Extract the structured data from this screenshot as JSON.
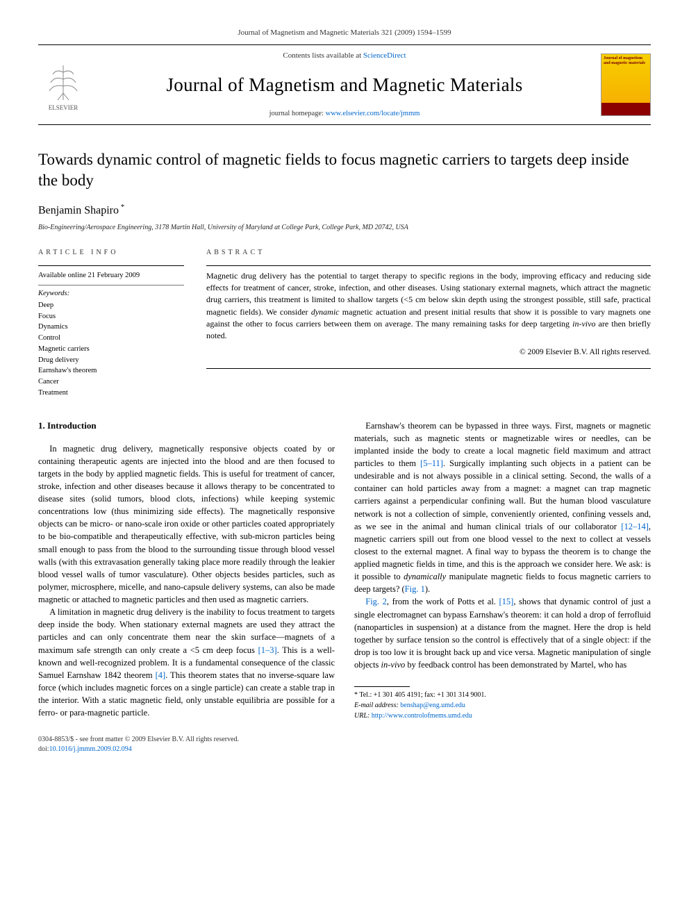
{
  "header_citation": "Journal of Magnetism and Magnetic Materials 321 (2009) 1594–1599",
  "masthead": {
    "publisher": "ELSEVIER",
    "contents_prefix": "Contents lists available at ",
    "contents_link": "ScienceDirect",
    "journal_name": "Journal of Magnetism and Magnetic Materials",
    "homepage_prefix": "journal homepage: ",
    "homepage_link": "www.elsevier.com/locate/jmmm",
    "cover_text": "Journal of magnetism and magnetic materials"
  },
  "title": "Towards dynamic control of magnetic fields to focus magnetic carriers to targets deep inside the body",
  "author": "Benjamin Shapiro",
  "author_marker": "*",
  "affiliation": "Bio-Engineering/Aerospace Engineering, 3178 Martin Hall, University of Maryland at College Park, College Park, MD 20742, USA",
  "info": {
    "heading": "article info",
    "available": "Available online 21 February 2009",
    "keywords_label": "Keywords:",
    "keywords": [
      "Deep",
      "Focus",
      "Dynamics",
      "Control",
      "Magnetic carriers",
      "Drug delivery",
      "Earnshaw's theorem",
      "Cancer",
      "Treatment"
    ]
  },
  "abstract": {
    "heading": "abstract",
    "text_parts": [
      "Magnetic drug delivery has the potential to target therapy to specific regions in the body, improving efficacy and reducing side effects for treatment of cancer, stroke, infection, and other diseases. Using stationary external magnets, which attract the magnetic drug carriers, this treatment is limited to shallow targets (<5 cm below skin depth using the strongest possible, still safe, practical magnetic fields). We consider ",
      "dynamic",
      " magnetic actuation and present initial results that show it is possible to vary magnets one against the other to focus carriers between them on average. The many remaining tasks for deep targeting ",
      "in-vivo",
      " are then briefly noted."
    ],
    "copyright": "© 2009 Elsevier B.V. All rights reserved."
  },
  "body": {
    "section_heading": "1. Introduction",
    "p1": "In magnetic drug delivery, magnetically responsive objects coated by or containing therapeutic agents are injected into the blood and are then focused to targets in the body by applied magnetic fields. This is useful for treatment of cancer, stroke, infection and other diseases because it allows therapy to be concentrated to disease sites (solid tumors, blood clots, infections) while keeping systemic concentrations low (thus minimizing side effects). The magnetically responsive objects can be micro- or nano-scale iron oxide or other particles coated appropriately to be bio-compatible and therapeutically effective, with sub-micron particles being small enough to pass from the blood to the surrounding tissue through blood vessel walls (with this extravasation generally taking place more readily through the leakier blood vessel walls of tumor vasculature). Other objects besides particles, such as polymer, microsphere, micelle, and nano-capsule delivery systems, can also be made magnetic or attached to magnetic particles and then used as magnetic carriers.",
    "p2_a": "A limitation in magnetic drug delivery is the inability to focus treatment to targets deep inside the body. When stationary external magnets are used they attract the particles and can only concentrate them near the skin surface—magnets of a maximum safe strength can only create a <5 cm deep focus ",
    "p2_ref1": "[1–3]",
    "p2_b": ". This is a well-known and well-recognized problem. It is a fundamental ",
    "p2_c": "consequence of the classic Samuel Earnshaw 1842 theorem ",
    "p2_ref2": "[4]",
    "p2_d": ". This theorem states that no inverse-square law force (which includes magnetic forces on a single particle) can create a stable trap in the interior. With a static magnetic field, only unstable equilibria are possible for a ferro- or para-magnetic particle.",
    "p3_a": "Earnshaw's theorem can be bypassed in three ways. First, magnets or magnetic materials, such as magnetic stents or magnetizable wires or needles, can be implanted inside the body to create a local magnetic field maximum and attract particles to them ",
    "p3_ref1": "[5–11]",
    "p3_b": ". Surgically implanting such objects in a patient can be undesirable and is not always possible in a clinical setting. Second, the walls of a container can hold particles away from a magnet: a magnet can trap magnetic carriers against a perpendicular confining wall. But the human blood vasculature network is not a collection of simple, conveniently oriented, confining vessels and, as we see in the animal and human clinical trials of our collaborator ",
    "p3_ref2": "[12–14]",
    "p3_c": ", magnetic carriers spill out from one blood vessel to the next to collect at vessels closest to the external magnet. A final way to bypass the theorem is to change the applied magnetic fields in time, and this is the approach we consider here. We ask: is it possible to ",
    "p3_em": "dynamically",
    "p3_d": " manipulate magnetic fields to focus magnetic carriers to deep targets? (",
    "p3_ref3": "Fig. 1",
    "p3_e": ").",
    "p4_ref1": "Fig. 2",
    "p4_a": ", from the work of Potts et al. ",
    "p4_ref2": "[15]",
    "p4_b": ", shows that dynamic control of just a single electromagnet can bypass Earnshaw's theorem: it can hold a drop of ferrofluid (nanoparticles in suspension) at a distance from the magnet. Here the drop is held together by surface tension so the control is effectively that of a single object: if the drop is too low it is brought back up and vice versa. Magnetic manipulation of single objects ",
    "p4_em": "in-vivo",
    "p4_c": " by feedback control has been demonstrated by Martel, who has"
  },
  "footnote": {
    "tel": "* Tel.: +1 301 405 4191; fax: +1 301 314 9001.",
    "email_label": "E-mail address: ",
    "email": "benshap@eng.umd.edu",
    "url_label": "URL: ",
    "url": "http://www.controlofmems.umd.edu"
  },
  "footer": {
    "line1": "0304-8853/$ - see front matter © 2009 Elsevier B.V. All rights reserved.",
    "doi_prefix": "doi:",
    "doi": "10.1016/j.jmmm.2009.02.094"
  }
}
